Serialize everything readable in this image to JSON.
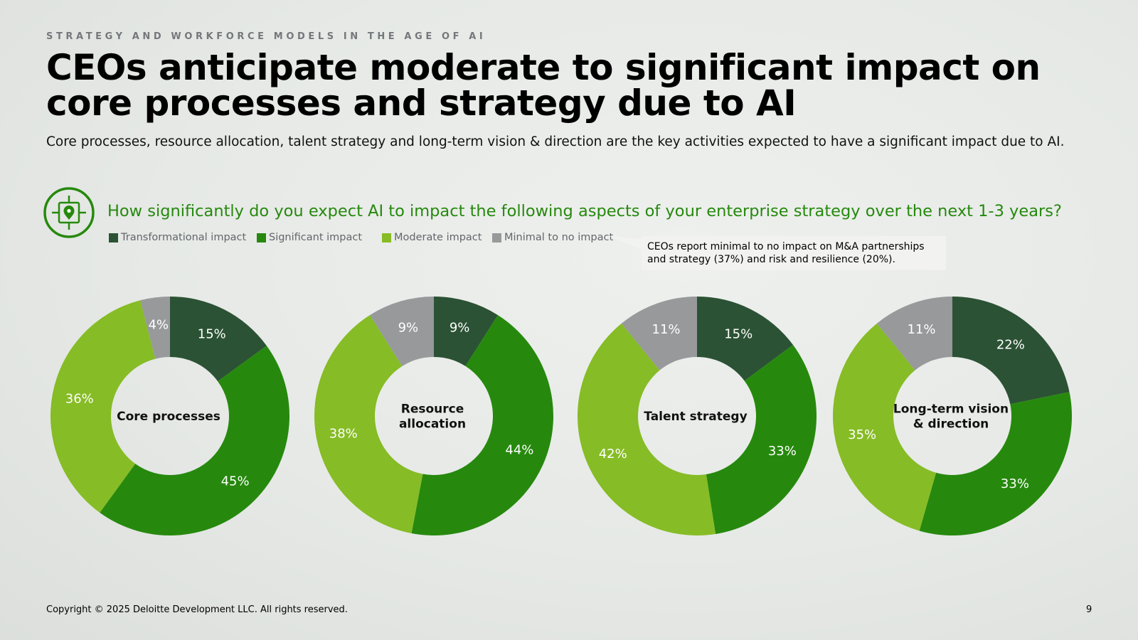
{
  "header": {
    "kicker": "STRATEGY AND WORKFORCE MODELS IN THE AGE OF AI",
    "title": "CEOs anticipate moderate to significant impact on core processes and strategy due to AI",
    "subtitle": "Core processes, resource allocation, talent strategy and long-term vision & direction are the key activities expected to have a significant impact due to AI."
  },
  "question": {
    "icon": "target-location-icon",
    "text": "How significantly do you expect AI to impact the following aspects of your enterprise strategy over the next 1-3 years?"
  },
  "colors": {
    "transformational": "#2b5234",
    "significant": "#26890d",
    "moderate": "#86bc25",
    "minimal": "#97999b",
    "accent": "#26890d"
  },
  "callout": {
    "line1": "CEOs report minimal to no impact on M&A partnerships",
    "line2": "and strategy (37%) and risk and resilience (20%)."
  },
  "chart_data": [
    {
      "type": "pie",
      "variant": "donut",
      "center_label": [
        "Core processes"
      ],
      "categories": [
        "Transformational impact",
        "Significant impact",
        "Moderate impact",
        "Minimal to no impact"
      ],
      "values": [
        15,
        45,
        36,
        4
      ],
      "labels": [
        "15%",
        "45%",
        "36%",
        "4%"
      ]
    },
    {
      "type": "pie",
      "variant": "donut",
      "center_label": [
        "Resource",
        "allocation"
      ],
      "categories": [
        "Transformational impact",
        "Significant impact",
        "Moderate impact",
        "Minimal to no impact"
      ],
      "values": [
        9,
        44,
        38,
        9
      ],
      "labels": [
        "9%",
        "44%",
        "38%",
        "9%"
      ]
    },
    {
      "type": "pie",
      "variant": "donut",
      "center_label": [
        "Talent strategy"
      ],
      "categories": [
        "Transformational impact",
        "Significant impact",
        "Moderate impact",
        "Minimal to no impact"
      ],
      "values": [
        15,
        33,
        42,
        11
      ],
      "labels": [
        "15%",
        "33%",
        "42%",
        "11%"
      ]
    },
    {
      "type": "pie",
      "variant": "donut",
      "center_label": [
        "Long-term vision",
        "& direction"
      ],
      "categories": [
        "Transformational impact",
        "Significant impact",
        "Moderate impact",
        "Minimal to no impact"
      ],
      "values": [
        22,
        33,
        35,
        11
      ],
      "labels": [
        "22%",
        "33%",
        "35%",
        "11%"
      ]
    }
  ],
  "legend": [
    {
      "label": "Transformational impact",
      "color": "#2b5234"
    },
    {
      "label": "Significant impact",
      "color": "#26890d"
    },
    {
      "label": "Moderate impact",
      "color": "#86bc25"
    },
    {
      "label": "Minimal to no impact",
      "color": "#97999b"
    }
  ],
  "footer": {
    "copyright": "Copyright © 2025 Deloitte Development LLC. All rights reserved.",
    "page_number": "9"
  }
}
